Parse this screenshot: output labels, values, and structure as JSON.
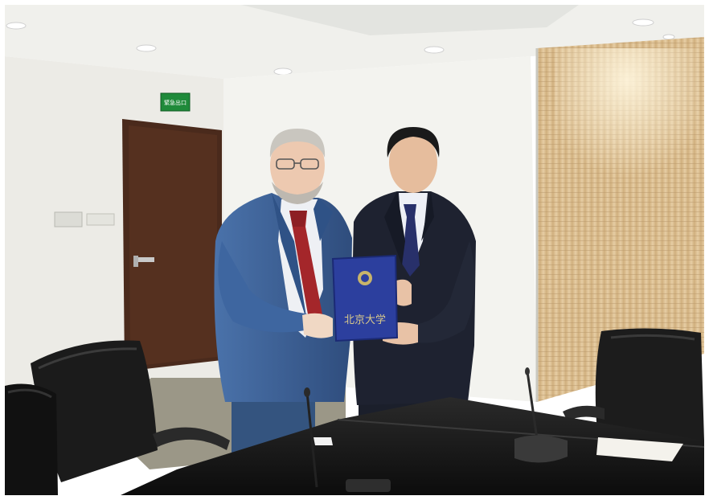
{
  "photo": {
    "subject": "two-men-holding-certificate-folder",
    "exit_sign": {
      "text": "緊急出口",
      "color": "#1f8a3a"
    },
    "folder": {
      "cover_text": "北京大学",
      "color": "#2c3f9e",
      "emblem_color": "#c8b46a"
    },
    "palette": {
      "ceiling": "#f2f2ee",
      "wall": "#ecebe6",
      "wood_panel": "#d8b98a",
      "door": "#4a2a1c",
      "table": "#141414",
      "chair": "#1c1c1c",
      "carpet": "#9b9787",
      "left_suit": "#3c5f95",
      "left_tie": "#a4262a",
      "right_suit": "#1e2230",
      "right_tie": "#28306a"
    }
  }
}
